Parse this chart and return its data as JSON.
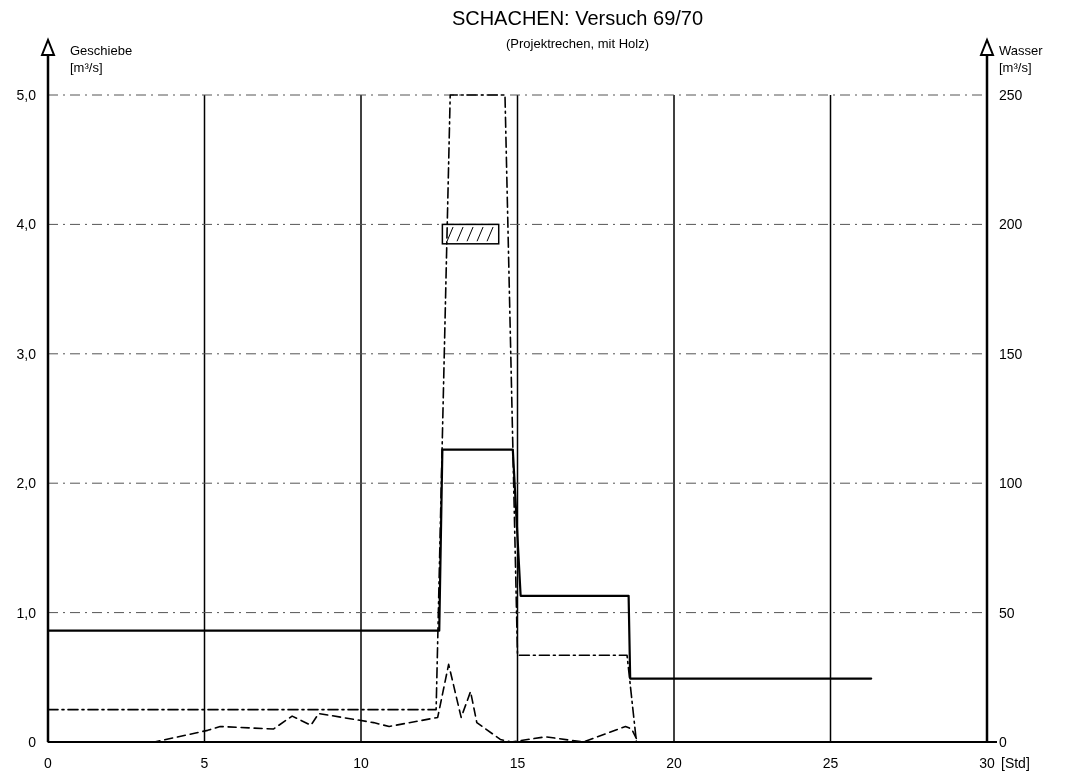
{
  "chart_data": {
    "type": "line",
    "title": "SCHACHEN: Versuch  69/70",
    "subtitle": "(Projektrechen, mit Holz)",
    "xlabel": "[Std]",
    "ylabel": "Geschiebe [m³/s]",
    "y2label": "Wasser [m³/s]",
    "xlim": [
      0,
      30
    ],
    "xticks": [
      0,
      5,
      10,
      15,
      20,
      25,
      30
    ],
    "ylim": [
      0,
      5
    ],
    "yticks": [
      0,
      {
        "value": 1,
        "label": "1,0"
      },
      {
        "value": 2,
        "label": "2,0"
      },
      {
        "value": 3,
        "label": "3,0"
      },
      {
        "value": 4,
        "label": "4,0"
      },
      {
        "value": 5,
        "label": "5,0"
      }
    ],
    "y2lim": [
      0,
      250
    ],
    "y2ticks": [
      0,
      50,
      100,
      150,
      200,
      250
    ],
    "grid": true,
    "marker": "none",
    "series": [
      {
        "color": "#000000",
        "line_style": "solid",
        "x": [
          0,
          12.5,
          12.6,
          14.85,
          15.1,
          18.55,
          18.6,
          26.3
        ],
        "values": [
          0.86,
          0.86,
          2.26,
          2.26,
          1.13,
          1.13,
          0.49,
          0.49
        ]
      },
      {
        "color": "#000000",
        "line_style": "dashdot",
        "x": [
          0,
          12.4,
          12.85,
          14.6,
          15.0,
          18.5,
          18.8
        ],
        "values": [
          0.25,
          0.25,
          5.0,
          5.0,
          0.67,
          0.67,
          0
        ]
      },
      {
        "color": "#000000",
        "line_style": "dashed",
        "x": [
          0,
          3.4,
          5.1,
          5.5,
          7.2,
          7.8,
          8.4,
          8.65,
          10.4,
          10.9,
          12.45,
          12.8,
          13.2,
          13.5,
          13.7,
          14.45,
          14.8,
          15.9,
          17.1,
          18.45,
          18.65,
          18.85
        ],
        "values": [
          0,
          0,
          0.09,
          0.12,
          0.1,
          0.2,
          0.13,
          0.22,
          0.15,
          0.12,
          0.19,
          0.6,
          0.19,
          0.39,
          0.15,
          0.02,
          0,
          0.04,
          0,
          0.12,
          0.1,
          0
        ]
      }
    ]
  }
}
